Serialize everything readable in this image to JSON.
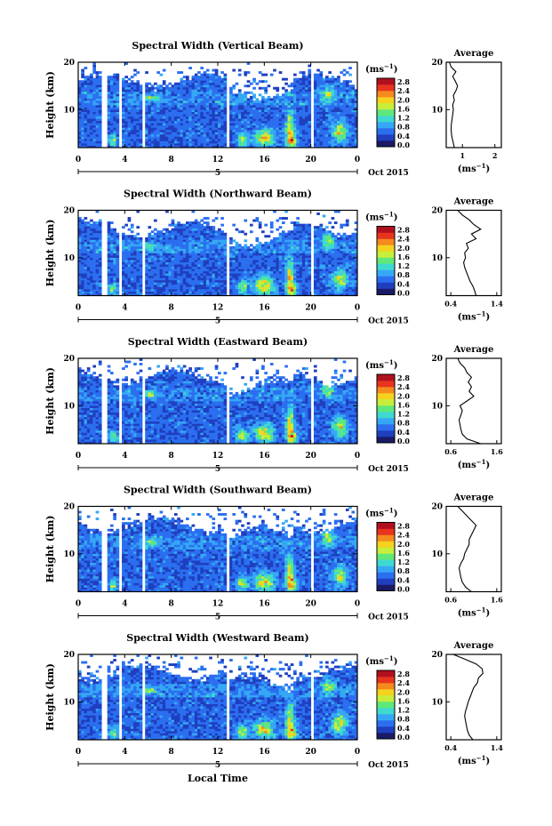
{
  "figure": {
    "xlabel": "Local Time",
    "date_label": "Oct 2015",
    "day_number": "5",
    "average_title": "Average",
    "unit_label": "(ms",
    "unit_exp": "−1",
    "unit_close": ")",
    "height_label": "Height (km)",
    "colorbar_ticks": [
      "0.0",
      "0.4",
      "0.8",
      "1.2",
      "1.6",
      "2.0",
      "2.4",
      "2.8"
    ],
    "colors": [
      "#1a1a66",
      "#1f3fbf",
      "#2b6ff0",
      "#35a8f5",
      "#3fd9d0",
      "#5fe87a",
      "#c8ee3c",
      "#f5d21e",
      "#f58a1e",
      "#e8341e",
      "#b0101e"
    ]
  },
  "chart_data": [
    {
      "type": "heatmap",
      "title": "Spectral Width (Vertical Beam)",
      "ylabel": "Height (km)",
      "xlabel": "",
      "xticks": [
        "0",
        "4",
        "8",
        "12",
        "16",
        "20",
        "0"
      ],
      "yticks": [
        "10",
        "20"
      ],
      "xlim": [
        0,
        24
      ],
      "ylim": [
        2,
        20
      ],
      "colorbar_range": [
        0.0,
        2.8
      ],
      "avg_xticks": [
        "1",
        "2"
      ],
      "avg_xlim": [
        0.5,
        2.2
      ],
      "avg_profile": {
        "height": [
          2,
          3,
          4,
          5,
          6,
          7,
          8,
          9,
          10,
          11,
          12,
          13,
          14,
          15,
          16,
          17,
          18,
          19,
          20
        ],
        "value": [
          0.75,
          0.72,
          0.68,
          0.66,
          0.65,
          0.66,
          0.68,
          0.7,
          0.72,
          0.7,
          0.75,
          0.72,
          0.8,
          0.85,
          0.78,
          0.7,
          0.8,
          0.65,
          0.6
        ]
      }
    },
    {
      "type": "heatmap",
      "title": "Spectral Width (Northward Beam)",
      "ylabel": "Height (km)",
      "xlabel": "",
      "xticks": [
        "0",
        "4",
        "8",
        "12",
        "16",
        "20",
        "0"
      ],
      "yticks": [
        "10",
        "20"
      ],
      "xlim": [
        0,
        24
      ],
      "ylim": [
        2,
        20
      ],
      "colorbar_range": [
        0.0,
        2.8
      ],
      "avg_xticks": [
        "0.4",
        "1.4"
      ],
      "avg_xlim": [
        0.3,
        1.5
      ],
      "avg_profile": {
        "height": [
          2,
          3,
          4,
          5,
          6,
          7,
          8,
          9,
          10,
          11,
          12,
          13,
          14,
          15,
          16,
          17,
          18,
          19,
          20
        ],
        "value": [
          0.95,
          0.92,
          0.88,
          0.82,
          0.78,
          0.74,
          0.7,
          0.68,
          0.72,
          0.7,
          0.78,
          0.74,
          0.95,
          0.85,
          1.05,
          0.9,
          0.8,
          0.65,
          0.55
        ]
      }
    },
    {
      "type": "heatmap",
      "title": "Spectral Width (Eastward Beam)",
      "ylabel": "Height (km)",
      "xlabel": "",
      "xticks": [
        "0",
        "4",
        "8",
        "12",
        "16",
        "20",
        "0"
      ],
      "yticks": [
        "10",
        "20"
      ],
      "xlim": [
        0,
        24
      ],
      "ylim": [
        2,
        20
      ],
      "colorbar_range": [
        0.0,
        2.8
      ],
      "avg_xticks": [
        "0.6",
        "1.6"
      ],
      "avg_xlim": [
        0.5,
        1.7
      ],
      "avg_profile": {
        "height": [
          2,
          3,
          4,
          5,
          6,
          7,
          8,
          9,
          10,
          11,
          12,
          13,
          14,
          15,
          16,
          17,
          18,
          19,
          20
        ],
        "value": [
          1.25,
          0.95,
          0.85,
          0.82,
          0.8,
          0.78,
          0.82,
          0.85,
          0.8,
          0.95,
          1.1,
          1.0,
          1.05,
          0.98,
          1.05,
          0.95,
          0.9,
          0.8,
          0.75
        ]
      }
    },
    {
      "type": "heatmap",
      "title": "Spectral Width (Southward Beam)",
      "ylabel": "Height (km)",
      "xlabel": "",
      "xticks": [
        "0",
        "4",
        "8",
        "12",
        "16",
        "20",
        "0"
      ],
      "yticks": [
        "10",
        "20"
      ],
      "xlim": [
        0,
        24
      ],
      "ylim": [
        2,
        20
      ],
      "colorbar_range": [
        0.0,
        2.8
      ],
      "avg_xticks": [
        "0.6",
        "1.6"
      ],
      "avg_xlim": [
        0.5,
        1.7
      ],
      "avg_profile": {
        "height": [
          2,
          3,
          4,
          5,
          6,
          7,
          8,
          9,
          10,
          11,
          12,
          13,
          14,
          15,
          16,
          17,
          18,
          19,
          20
        ],
        "value": [
          1.05,
          0.92,
          0.85,
          0.82,
          0.8,
          0.78,
          0.82,
          0.88,
          0.9,
          0.95,
          1.0,
          1.0,
          1.05,
          1.1,
          1.15,
          1.05,
          0.95,
          0.85,
          0.75
        ]
      }
    },
    {
      "type": "heatmap",
      "title": "Spectral Width (Westward Beam)",
      "ylabel": "Height (km)",
      "xlabel": "Local Time",
      "xticks": [
        "0",
        "4",
        "8",
        "12",
        "16",
        "20",
        "0"
      ],
      "yticks": [
        "10",
        "20"
      ],
      "xlim": [
        0,
        24
      ],
      "ylim": [
        2,
        20
      ],
      "colorbar_range": [
        0.0,
        2.8
      ],
      "avg_xticks": [
        "0.4",
        "1.4"
      ],
      "avg_xlim": [
        0.3,
        1.5
      ],
      "avg_profile": {
        "height": [
          2,
          3,
          4,
          5,
          6,
          7,
          8,
          9,
          10,
          11,
          12,
          13,
          14,
          15,
          16,
          17,
          18,
          19,
          20
        ],
        "value": [
          0.88,
          0.8,
          0.76,
          0.74,
          0.72,
          0.7,
          0.72,
          0.75,
          0.78,
          0.82,
          0.86,
          0.9,
          0.98,
          1.0,
          1.1,
          1.08,
          0.95,
          0.7,
          0.45
        ]
      }
    }
  ]
}
